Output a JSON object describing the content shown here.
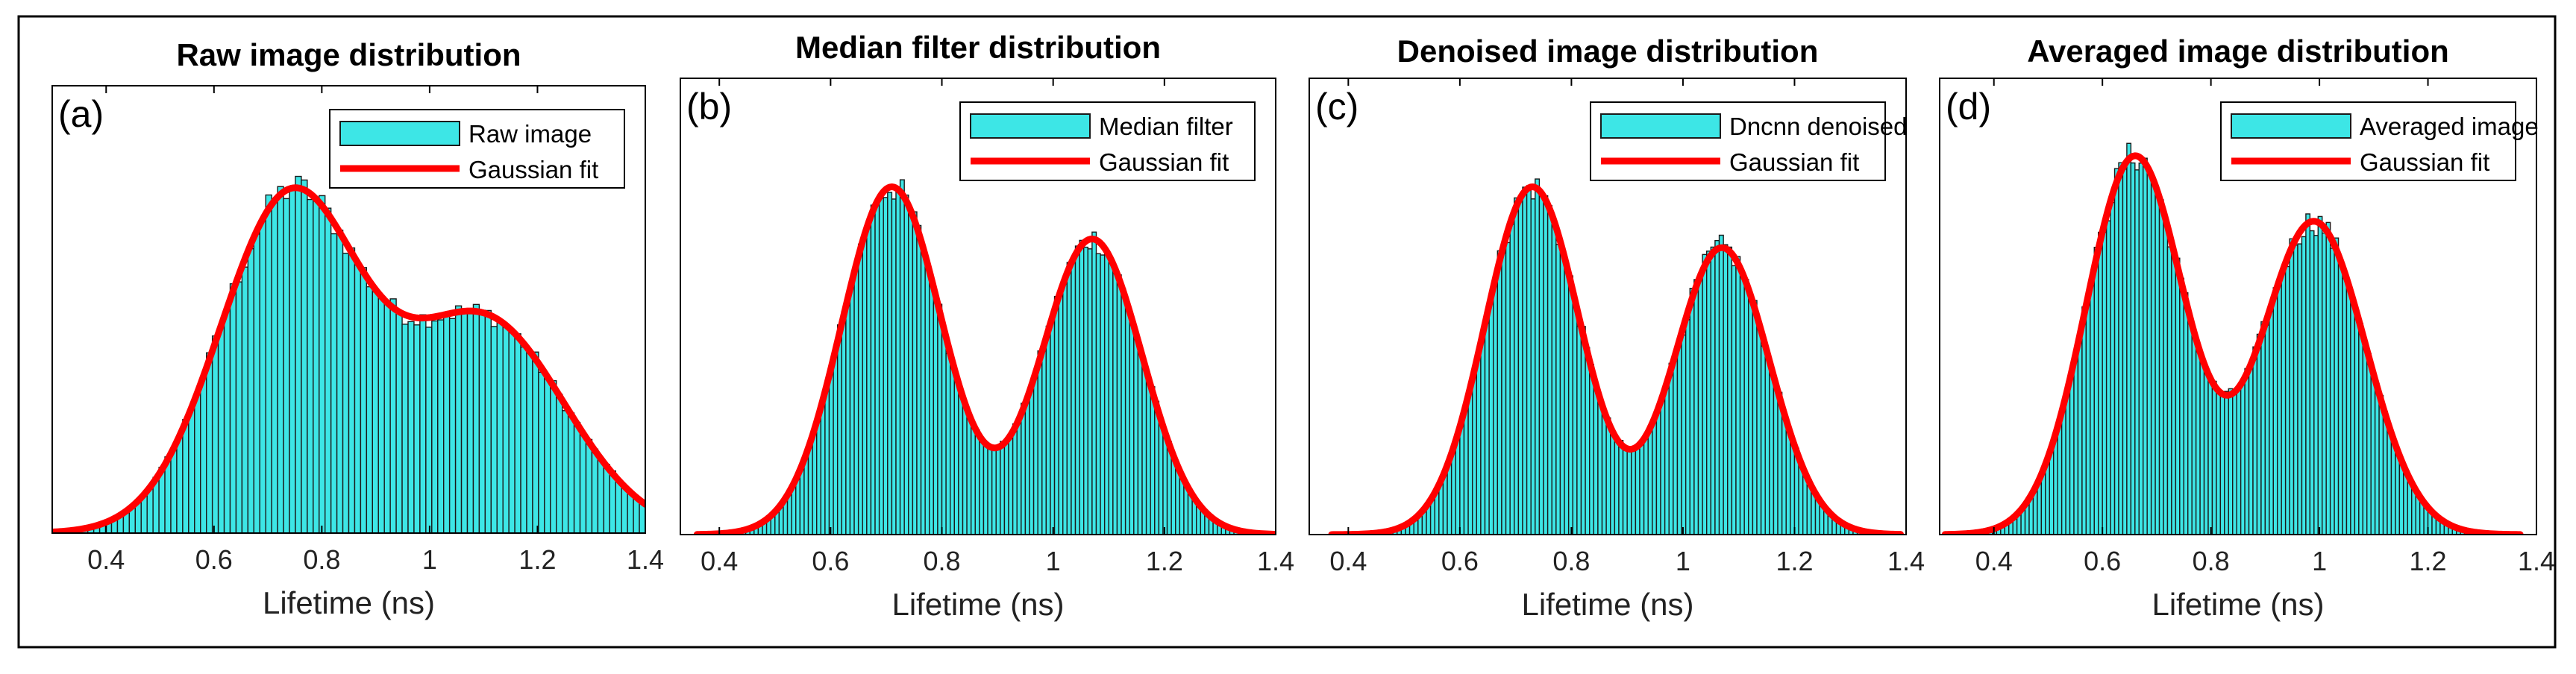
{
  "colors": {
    "bar_fill": "#3de6e6",
    "bar_edge": "#1a1a1a",
    "fit_line": "#ff0000",
    "frame": "#000000"
  },
  "chart_data": [
    {
      "type": "bar",
      "panel_label": "(a)",
      "title": "Raw image distribution",
      "xlabel": "Lifetime (ns)",
      "ylabel": "",
      "xlim": [
        0.3,
        1.4
      ],
      "xticks": [
        0.4,
        0.6,
        0.8,
        1.0,
        1.2,
        1.4
      ],
      "xtick_labels": [
        "0.4",
        "0.6",
        "0.8",
        "1",
        "1.2",
        "1.4"
      ],
      "legend_position": "top-right",
      "series": [
        {
          "name": "Raw image",
          "kind": "histogram",
          "bin_width": 0.011,
          "x": [
            0.3,
            1.4
          ],
          "fit": {
            "components": [
              {
                "amp": 0.78,
                "mu": 0.74,
                "sigma": 0.13
              },
              {
                "amp": 0.5,
                "mu": 1.1,
                "sigma": 0.15
              }
            ],
            "baseline": 0.0
          }
        },
        {
          "name": "Gaussian fit",
          "kind": "fit_line"
        }
      ],
      "y_range_normalized": [
        0,
        1.05
      ]
    },
    {
      "type": "bar",
      "panel_label": "(b)",
      "title": "Median filter distribution",
      "xlabel": "Lifetime (ns)",
      "ylabel": "",
      "xlim": [
        0.33,
        1.4
      ],
      "xticks": [
        0.4,
        0.6,
        0.8,
        1.0,
        1.2,
        1.4
      ],
      "xtick_labels": [
        "0.4",
        "0.6",
        "0.8",
        "1",
        "1.2",
        "1.4"
      ],
      "legend_position": "top-right",
      "series": [
        {
          "name": "Median filter",
          "kind": "histogram",
          "bin_width": 0.0075,
          "x": [
            0.38,
            1.38
          ],
          "fit": {
            "components": [
              {
                "amp": 0.8,
                "mu": 0.71,
                "sigma": 0.09
              },
              {
                "amp": 0.68,
                "mu": 1.07,
                "sigma": 0.09
              }
            ],
            "baseline": 0.0
          }
        },
        {
          "name": "Gaussian fit",
          "kind": "fit_line"
        }
      ],
      "y_range_normalized": [
        0,
        1.05
      ]
    },
    {
      "type": "bar",
      "panel_label": "(c)",
      "title": "Denoised image distribution",
      "xlabel": "Lifetime (ns)",
      "ylabel": "",
      "xlim": [
        0.33,
        1.4
      ],
      "xticks": [
        0.4,
        0.6,
        0.8,
        1.0,
        1.2,
        1.4
      ],
      "xtick_labels": [
        "0.4",
        "0.6",
        "0.8",
        "1",
        "1.2",
        "1.4"
      ],
      "legend_position": "top-right",
      "series": [
        {
          "name": "Dncnn denoised",
          "kind": "histogram",
          "bin_width": 0.0075,
          "x": [
            0.39,
            1.37
          ],
          "fit": {
            "components": [
              {
                "amp": 0.8,
                "mu": 0.73,
                "sigma": 0.085
              },
              {
                "amp": 0.66,
                "mu": 1.07,
                "sigma": 0.085
              }
            ],
            "baseline": 0.0
          }
        },
        {
          "name": "Gaussian fit",
          "kind": "fit_line"
        }
      ],
      "y_range_normalized": [
        0,
        1.05
      ]
    },
    {
      "type": "bar",
      "panel_label": "(d)",
      "title": "Averaged image distribution",
      "xlabel": "Lifetime (ns)",
      "ylabel": "",
      "xlim": [
        0.3,
        1.4
      ],
      "xticks": [
        0.4,
        0.6,
        0.8,
        1.0,
        1.2,
        1.4
      ],
      "xtick_labels": [
        "0.4",
        "0.6",
        "0.8",
        "1",
        "1.2",
        "1.4"
      ],
      "legend_position": "top-right",
      "series": [
        {
          "name": "Averaged image",
          "kind": "histogram",
          "bin_width": 0.0075,
          "x": [
            0.33,
            1.35
          ],
          "fit": {
            "components": [
              {
                "amp": 0.87,
                "mu": 0.66,
                "sigma": 0.09
              },
              {
                "amp": 0.72,
                "mu": 0.99,
                "sigma": 0.095
              }
            ],
            "baseline": 0.0
          }
        },
        {
          "name": "Gaussian fit",
          "kind": "fit_line"
        }
      ],
      "y_range_normalized": [
        0,
        1.05
      ]
    }
  ]
}
